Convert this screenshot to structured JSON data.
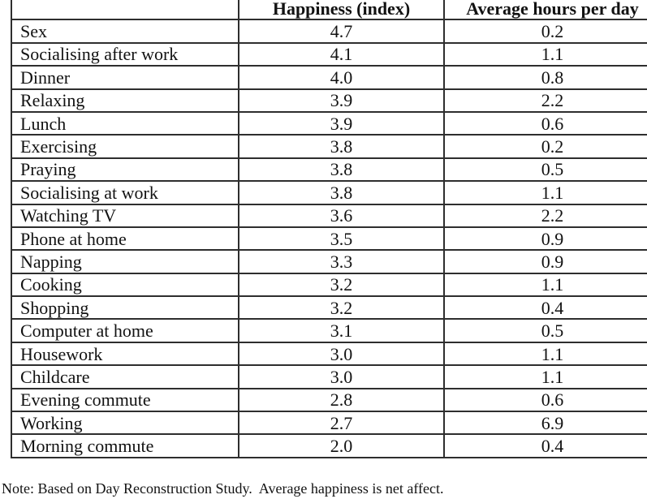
{
  "table": {
    "headers": [
      "",
      "Happiness (index)",
      "Average hours per day"
    ],
    "rows": [
      {
        "activity": "Sex",
        "happiness": "4.7",
        "hours": "0.2"
      },
      {
        "activity": "Socialising after work",
        "happiness": "4.1",
        "hours": "1.1"
      },
      {
        "activity": "Dinner",
        "happiness": "4.0",
        "hours": "0.8"
      },
      {
        "activity": "Relaxing",
        "happiness": "3.9",
        "hours": "2.2"
      },
      {
        "activity": "Lunch",
        "happiness": "3.9",
        "hours": "0.6"
      },
      {
        "activity": "Exercising",
        "happiness": "3.8",
        "hours": "0.2"
      },
      {
        "activity": "Praying",
        "happiness": "3.8",
        "hours": "0.5"
      },
      {
        "activity": "Socialising at work",
        "happiness": "3.8",
        "hours": "1.1"
      },
      {
        "activity": "Watching TV",
        "happiness": "3.6",
        "hours": "2.2"
      },
      {
        "activity": "Phone at home",
        "happiness": "3.5",
        "hours": "0.9"
      },
      {
        "activity": "Napping",
        "happiness": "3.3",
        "hours": "0.9"
      },
      {
        "activity": "Cooking",
        "happiness": "3.2",
        "hours": "1.1"
      },
      {
        "activity": "Shopping",
        "happiness": "3.2",
        "hours": "0.4"
      },
      {
        "activity": "Computer at home",
        "happiness": "3.1",
        "hours": "0.5"
      },
      {
        "activity": "Housework",
        "happiness": "3.0",
        "hours": "1.1"
      },
      {
        "activity": "Childcare",
        "happiness": "3.0",
        "hours": "1.1"
      },
      {
        "activity": "Evening commute",
        "happiness": "2.8",
        "hours": "0.6"
      },
      {
        "activity": "Working",
        "happiness": "2.7",
        "hours": "6.9"
      },
      {
        "activity": "Morning commute",
        "happiness": "2.0",
        "hours": "0.4"
      }
    ]
  },
  "note": "Note: Based on Day Reconstruction Study.  Average happiness is net affect.",
  "colors": {
    "background": "#ffffff",
    "text": "#121212",
    "border": "#2e2e2e"
  }
}
